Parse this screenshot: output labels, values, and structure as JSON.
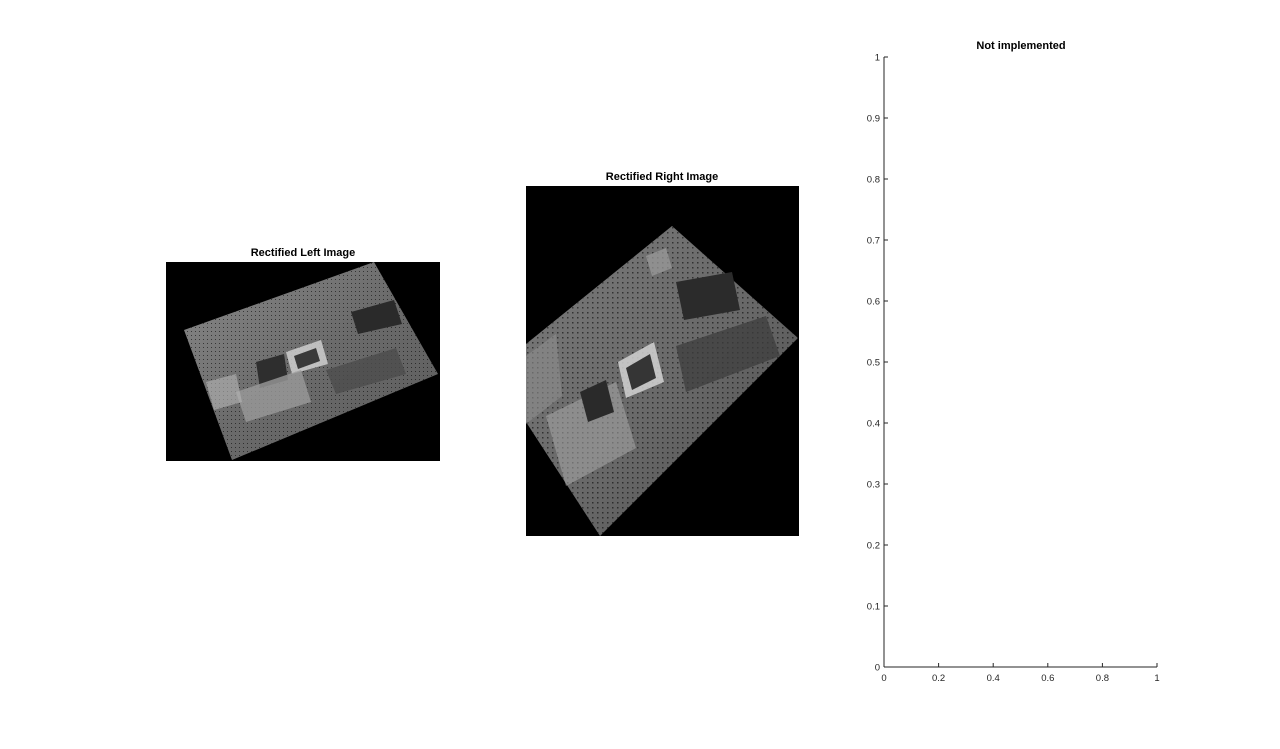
{
  "figure": {
    "left_image": {
      "title": "Rectified Left Image"
    },
    "right_image": {
      "title": "Rectified Right Image"
    }
  },
  "chart_data": {
    "type": "line",
    "title": "Not implemented",
    "xlabel": "",
    "ylabel": "",
    "xlim": [
      0,
      1
    ],
    "ylim": [
      0,
      1
    ],
    "xticks": [
      0,
      0.2,
      0.4,
      0.6,
      0.8,
      1
    ],
    "xtick_labels": [
      "0",
      "0.2",
      "0.4",
      "0.6",
      "0.8",
      "1"
    ],
    "yticks": [
      0,
      0.1,
      0.2,
      0.3,
      0.4,
      0.5,
      0.6,
      0.7,
      0.8,
      0.9,
      1
    ],
    "ytick_labels": [
      "0",
      "0.1",
      "0.2",
      "0.3",
      "0.4",
      "0.5",
      "0.6",
      "0.7",
      "0.8",
      "0.9",
      "1"
    ],
    "grid": false,
    "series": []
  }
}
